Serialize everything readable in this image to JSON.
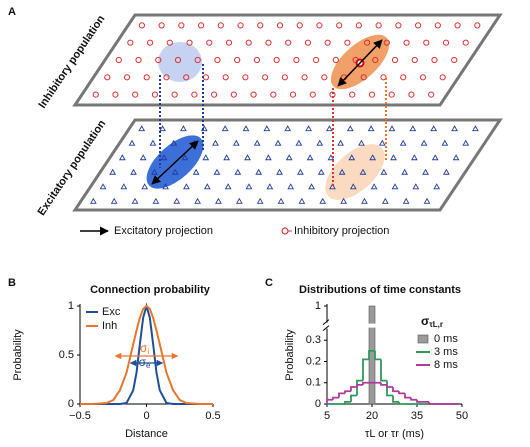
{
  "panel_a": {
    "label": "A",
    "top_plane_label": "Inhibitory population",
    "bottom_plane_label": "Excitatory population",
    "legend": [
      "Excitatory projection",
      "Inhibitory projection"
    ]
  },
  "chart_data": [
    {
      "type": "line",
      "panel_label": "B",
      "title": "Connection probability",
      "xlabel": "Distance",
      "ylabel": "Probability",
      "x": [
        -0.5,
        -0.4,
        -0.3,
        -0.25,
        -0.2,
        -0.15,
        -0.1,
        -0.075,
        -0.05,
        -0.025,
        0,
        0.025,
        0.05,
        0.075,
        0.1,
        0.15,
        0.2,
        0.25,
        0.3,
        0.4,
        0.5
      ],
      "series": [
        {
          "name": "Exc",
          "color": "#1f4e9c",
          "values": [
            0,
            0,
            0,
            0,
            0,
            0.01,
            0.14,
            0.32,
            0.61,
            0.88,
            1,
            0.88,
            0.61,
            0.32,
            0.14,
            0.01,
            0,
            0,
            0,
            0,
            0
          ]
        },
        {
          "name": "Inh",
          "color": "#e8762c",
          "values": [
            0,
            0,
            0.01,
            0.04,
            0.14,
            0.32,
            0.61,
            0.75,
            0.88,
            0.97,
            1,
            0.97,
            0.88,
            0.75,
            0.61,
            0.32,
            0.14,
            0.04,
            0.01,
            0,
            0
          ]
        }
      ],
      "annotations": [
        {
          "text": "σ",
          "sub": "i",
          "color": "#e8762c"
        },
        {
          "text": "σ",
          "sub": "e",
          "color": "#1f4e9c"
        }
      ],
      "xlim": [
        -0.5,
        0.5
      ],
      "xticks": [
        {
          "value": -0.5,
          "label": "−0.5"
        },
        0,
        0.5
      ],
      "ylim": [
        0,
        1
      ],
      "yticks": [
        0,
        0.5,
        1
      ]
    },
    {
      "type": "histogram",
      "panel_label": "C",
      "title": "Distributions of time constants",
      "xlabel": "τL or τr (ms)",
      "ylabel": "Probability",
      "legend_title": {
        "text": "σ",
        "sub": "τL,r"
      },
      "bins": [
        5,
        7,
        9,
        11,
        13,
        15,
        17,
        19,
        21,
        23,
        25,
        27,
        29,
        31,
        33,
        35,
        37,
        39,
        41,
        43,
        45,
        47,
        49
      ],
      "series": [
        {
          "name": "0 ms",
          "color": "#9a9a9a",
          "style": "filled",
          "values": [
            0,
            0,
            0,
            0,
            0,
            0,
            0,
            1,
            0,
            0,
            0,
            0,
            0,
            0,
            0,
            0,
            0,
            0,
            0,
            0,
            0,
            0
          ]
        },
        {
          "name": "3 ms",
          "color": "#2e9a5a",
          "style": "step",
          "values": [
            0,
            0,
            0,
            0.01,
            0.04,
            0.11,
            0.21,
            0.25,
            0.21,
            0.11,
            0.04,
            0.01,
            0,
            0,
            0,
            0,
            0,
            0,
            0,
            0,
            0,
            0
          ]
        },
        {
          "name": "8 ms",
          "color": "#b23a9c",
          "style": "step",
          "values": [
            0.02,
            0.03,
            0.05,
            0.06,
            0.08,
            0.09,
            0.1,
            0.1,
            0.1,
            0.09,
            0.08,
            0.06,
            0.05,
            0.03,
            0.02,
            0.01,
            0.01,
            0,
            0,
            0,
            0,
            0
          ]
        }
      ],
      "xlim": [
        5,
        50
      ],
      "xticks": [
        5,
        20,
        35,
        50
      ],
      "ylim": [
        0,
        1
      ],
      "yticks": [
        0,
        0.1,
        0.2,
        0.3,
        1
      ],
      "y_break": [
        0.35,
        0.95
      ]
    }
  ]
}
